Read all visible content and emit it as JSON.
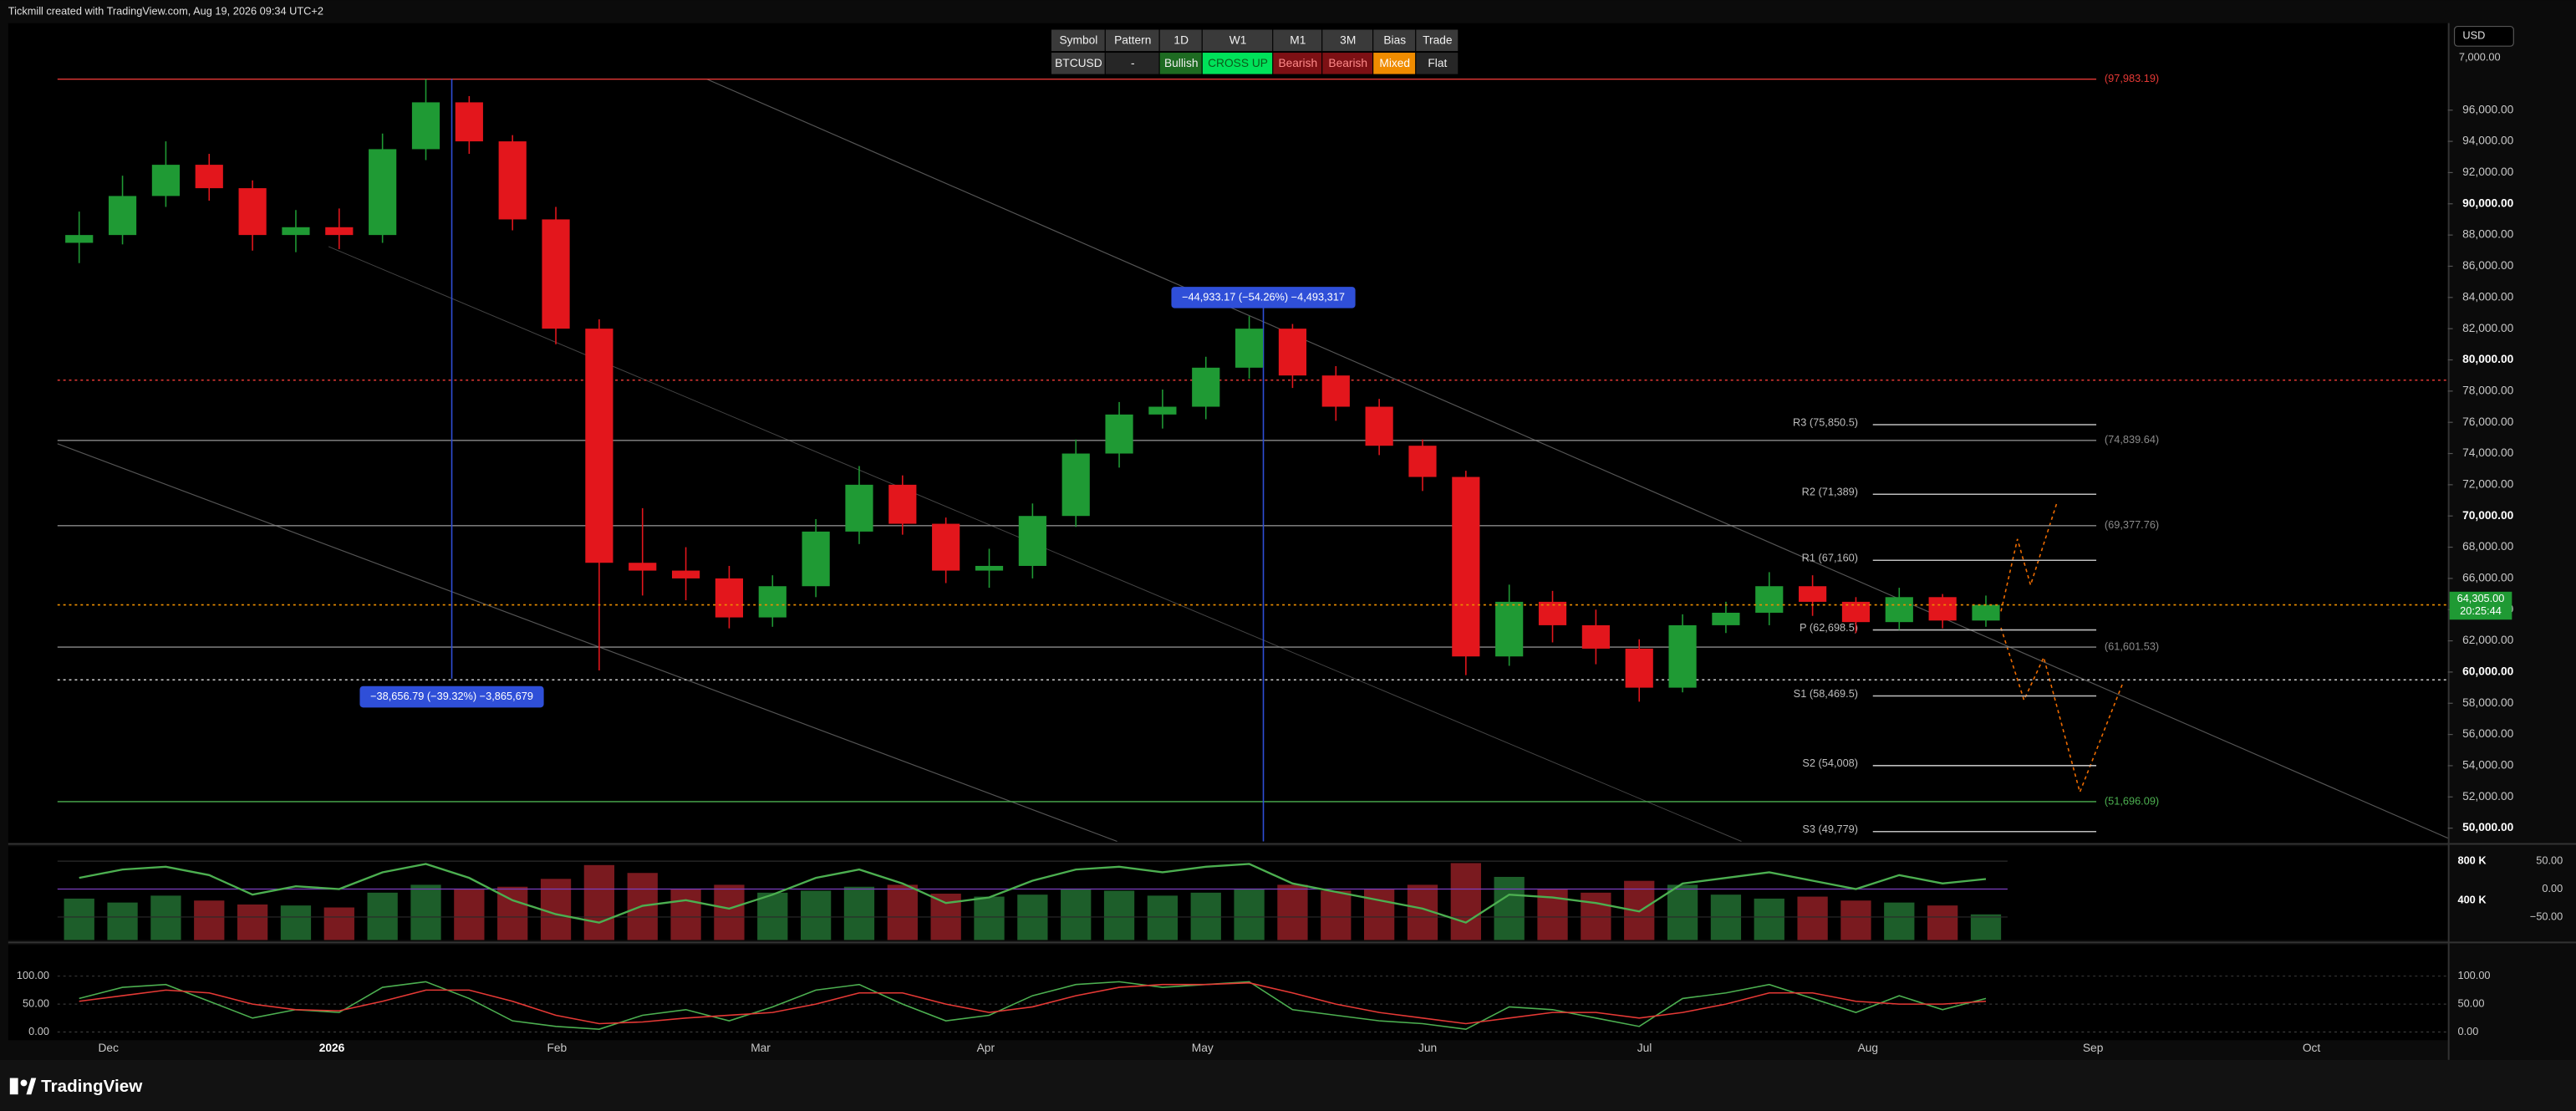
{
  "header": {
    "watermark": "Tickmill created with TradingView.com, Aug 19, 2026 09:34 UTC+2",
    "currency": "USD",
    "logo": "TradingView"
  },
  "table": {
    "header": [
      "Symbol",
      "Pattern",
      "1D",
      "W1",
      "M1",
      "3M",
      "Bias",
      "Trade"
    ],
    "rows": [
      [
        "BTCUSD",
        "-",
        "Bullish",
        "CROSS UP",
        "Bearish",
        "Bearish",
        "Mixed",
        "Flat"
      ]
    ]
  },
  "chart_data": [
    {
      "type": "candlestick",
      "up_color": "#1f9a34",
      "down_color": "#e3161c",
      "categories": [
        null,
        null,
        null,
        null,
        null,
        null,
        null,
        null,
        null,
        null,
        null,
        null,
        null,
        null,
        null,
        null,
        null,
        null,
        null,
        null,
        null,
        null,
        null,
        null,
        null,
        null,
        null,
        null,
        null,
        null,
        null,
        null,
        null,
        null,
        null,
        null,
        null,
        null,
        null,
        null,
        null,
        null,
        null,
        null,
        null
      ],
      "open": [
        87500,
        88000,
        90500,
        92500,
        91000,
        88000,
        88500,
        88000,
        93500,
        96500,
        94000,
        89000,
        82000,
        67000,
        66500,
        66000,
        63500,
        65500,
        69000,
        72000,
        69500,
        66500,
        66800,
        70000,
        74000,
        76500,
        77000,
        79500,
        82000,
        79000,
        77000,
        74500,
        72500,
        61000,
        64500,
        63000,
        61500,
        59000,
        63000,
        63800,
        65500,
        64500,
        63200,
        64800,
        63300
      ],
      "high": [
        89500,
        91800,
        94000,
        93200,
        91500,
        89600,
        89700,
        94500,
        97983,
        96900,
        94400,
        89800,
        82600,
        70500,
        68000,
        66800,
        66200,
        69800,
        73200,
        72600,
        69900,
        67900,
        70800,
        74900,
        77300,
        78100,
        80200,
        82800,
        82300,
        79600,
        77500,
        74900,
        72900,
        65600,
        65200,
        64000,
        62100,
        63700,
        64500,
        66400,
        66200,
        64800,
        65400,
        65000,
        64900
      ],
      "low": [
        86200,
        87400,
        89800,
        90200,
        87000,
        86900,
        87100,
        87500,
        92800,
        93200,
        88300,
        81000,
        60100,
        64900,
        64600,
        62800,
        62900,
        64800,
        68200,
        68800,
        65700,
        65400,
        66000,
        69300,
        73100,
        75600,
        76200,
        78800,
        78200,
        76100,
        73900,
        71600,
        59800,
        60400,
        61900,
        60500,
        58100,
        58700,
        62500,
        63000,
        63600,
        62500,
        62700,
        62800,
        62900
      ],
      "close": [
        88000,
        90500,
        92500,
        91000,
        88000,
        88500,
        88000,
        93500,
        96500,
        94000,
        89000,
        82000,
        67000,
        66500,
        66000,
        63500,
        65500,
        69000,
        72000,
        69500,
        66500,
        66800,
        70000,
        74000,
        76500,
        77000,
        79500,
        82000,
        79000,
        77000,
        74500,
        72500,
        61000,
        64500,
        63000,
        61500,
        59000,
        63000,
        63800,
        65500,
        64500,
        63200,
        64800,
        63300,
        64305
      ],
      "ylim": [
        49150,
        101470
      ],
      "yticks": [
        {
          "value": 50000,
          "label": "50,000.00"
        },
        {
          "value": 52000,
          "label": "52,000.00"
        },
        {
          "value": 54000,
          "label": "54,000.00"
        },
        {
          "value": 56000,
          "label": "56,000.00"
        },
        {
          "value": 58000,
          "label": "58,000.00"
        },
        {
          "value": 60000,
          "label": "60,000.00"
        },
        {
          "value": 62000,
          "label": "62,000.00"
        },
        {
          "value": 64000,
          "label": "64,000.00"
        },
        {
          "value": 66000,
          "label": "66,000.00"
        },
        {
          "value": 68000,
          "label": "68,000.00"
        },
        {
          "value": 70000,
          "label": "70,000.00"
        },
        {
          "value": 72000,
          "label": "72,000.00"
        },
        {
          "value": 74000,
          "label": "74,000.00"
        },
        {
          "value": 76000,
          "label": "76,000.00"
        },
        {
          "value": 78000,
          "label": "78,000.00"
        },
        {
          "value": 80000,
          "label": "80,000.00"
        },
        {
          "value": 82000,
          "label": "82,000.00"
        },
        {
          "value": 84000,
          "label": "84,000.00"
        },
        {
          "value": 86000,
          "label": "86,000.00"
        },
        {
          "value": 88000,
          "label": "88,000.00"
        },
        {
          "value": 90000,
          "label": "90,000.00"
        },
        {
          "value": 92000,
          "label": "92,000.00"
        },
        {
          "value": 94000,
          "label": "94,000.00"
        },
        {
          "value": 96000,
          "label": "96,000.00"
        }
      ],
      "clipped_tick_label": "7,000.00",
      "grid": false,
      "time_labels": [
        "Dec",
        "2026",
        "Feb",
        "Mar",
        "Apr",
        "May",
        "Jun",
        "Jul",
        "Aug",
        "Sep",
        "Oct"
      ],
      "last_price": {
        "value": 64305,
        "label": "64,305.00",
        "color": "#1f9a34"
      },
      "countdown": "20:25:44",
      "levels": [
        {
          "label": "(97,983.19)",
          "value": 97983.19,
          "color": "#e53935",
          "kind": "full"
        },
        {
          "value": 78700,
          "color": "#e53935",
          "kind": "dotted"
        },
        {
          "label": "(74,839.64)",
          "value": 74839.64,
          "color": "#8a8a8a",
          "kind": "full"
        },
        {
          "label": "(69,377.76)",
          "value": 69377.76,
          "color": "#8a8a8a",
          "kind": "full"
        },
        {
          "label": "(61,601.53)",
          "value": 61601.53,
          "color": "#8a8a8a",
          "kind": "full"
        },
        {
          "value": 59500,
          "color": "#d0d0d0",
          "kind": "dotted"
        },
        {
          "label": "(51,696.09)",
          "value": 51696.09,
          "color": "#4caf50",
          "kind": "full"
        },
        {
          "label": "R3 (75,850.5)",
          "value": 75850.5,
          "color": "#bdbdbd",
          "kind": "pivot"
        },
        {
          "label": "R2 (71,389)",
          "value": 71389,
          "color": "#bdbdbd",
          "kind": "pivot"
        },
        {
          "label": "R1 (67,160)",
          "value": 67160,
          "color": "#bdbdbd",
          "kind": "pivot"
        },
        {
          "label": "P (62,698.5)",
          "value": 62698.5,
          "color": "#bdbdbd",
          "kind": "pivot"
        },
        {
          "label": "S1 (58,469.5)",
          "value": 58469.5,
          "color": "#bdbdbd",
          "kind": "pivot"
        },
        {
          "label": "S2 (54,008)",
          "value": 54008,
          "color": "#bdbdbd",
          "kind": "pivot"
        },
        {
          "label": "S3 (49,779)",
          "value": 49779,
          "color": "#bdbdbd",
          "kind": "pivot"
        }
      ],
      "measures": [
        {
          "label": "−44,933.17 (−54.26%) −4,493,317"
        },
        {
          "label": "−38,656.79 (−39.32%) −3,865,679"
        }
      ]
    },
    {
      "type": "bar",
      "values": [
        420000,
        380000,
        450000,
        400000,
        360000,
        350000,
        330000,
        480000,
        560000,
        520000,
        540000,
        620000,
        760000,
        680000,
        520000,
        560000,
        480000,
        500000,
        540000,
        560000,
        470000,
        440000,
        460000,
        520000,
        500000,
        450000,
        480000,
        520000,
        560000,
        500000,
        520000,
        560000,
        780000,
        640000,
        520000,
        480000,
        600000,
        560000,
        460000,
        420000,
        440000,
        400000,
        380000,
        350000,
        260000
      ],
      "ylim": [
        0,
        950000
      ],
      "yticks": [
        {
          "value": 400000,
          "label": "400 K"
        },
        {
          "value": 800000,
          "label": "800 K"
        }
      ],
      "y2lim": [
        -91.2,
        76.5
      ],
      "y2ticks": [
        {
          "value": -50,
          "label": "−50.00"
        },
        {
          "value": 0,
          "label": "0.00"
        },
        {
          "value": 50,
          "label": "50.00"
        }
      ],
      "line": {
        "axis": "y2",
        "color": "#4caf50",
        "values": [
          20,
          35,
          40,
          25,
          -10,
          5,
          0,
          30,
          45,
          20,
          -20,
          -45,
          -60,
          -30,
          -20,
          -35,
          -10,
          20,
          35,
          10,
          -25,
          -15,
          15,
          35,
          40,
          30,
          40,
          45,
          10,
          -5,
          -20,
          -35,
          -60,
          -10,
          -15,
          -25,
          -40,
          10,
          20,
          30,
          15,
          0,
          25,
          10,
          18
        ]
      }
    },
    {
      "type": "line",
      "series": [
        {
          "color": "#4caf50",
          "values": [
            60,
            80,
            85,
            55,
            25,
            40,
            35,
            80,
            90,
            60,
            20,
            10,
            5,
            30,
            40,
            20,
            45,
            75,
            85,
            50,
            20,
            30,
            65,
            85,
            90,
            80,
            85,
            90,
            40,
            30,
            20,
            15,
            5,
            45,
            40,
            25,
            10,
            60,
            70,
            85,
            60,
            35,
            65,
            40,
            60
          ]
        },
        {
          "color": "#e53935",
          "values": [
            55,
            65,
            75,
            70,
            50,
            40,
            38,
            55,
            75,
            75,
            55,
            30,
            15,
            18,
            25,
            30,
            35,
            50,
            70,
            70,
            50,
            35,
            45,
            65,
            80,
            85,
            85,
            88,
            70,
            50,
            35,
            25,
            15,
            25,
            35,
            35,
            25,
            35,
            50,
            70,
            70,
            55,
            50,
            50,
            55
          ]
        }
      ],
      "ylim": [
        -14.7,
        155.9
      ],
      "yticks": [
        {
          "value": 0,
          "label": "0.00"
        },
        {
          "value": 50,
          "label": "50.00"
        },
        {
          "value": 100,
          "label": "100.00"
        }
      ]
    }
  ]
}
